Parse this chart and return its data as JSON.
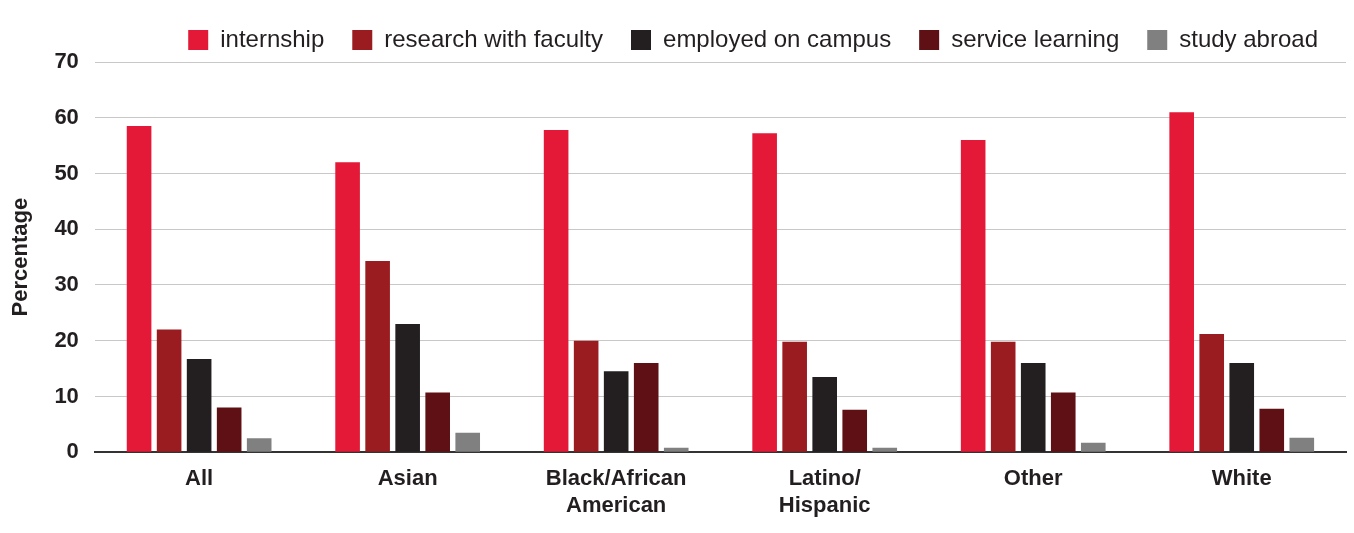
{
  "chart_data": {
    "type": "bar",
    "ylabel": "Percentage",
    "categories": [
      "All",
      "Asian",
      "Black/African\nAmerican",
      "Latino/\nHispanic",
      "Other",
      "White"
    ],
    "series": [
      {
        "name": "internship",
        "color": "#e31937",
        "values": [
          58.5,
          52,
          57.8,
          57.2,
          56,
          61
        ]
      },
      {
        "name": "research with faculty",
        "color": "#9b1c20",
        "values": [
          22,
          34.3,
          20,
          19.8,
          19.8,
          21.2
        ]
      },
      {
        "name": "employed on campus",
        "color": "#231f20",
        "values": [
          16.7,
          23,
          14.5,
          13.5,
          16,
          16
        ]
      },
      {
        "name": "service learning",
        "color": "#5e1014",
        "values": [
          8,
          10.7,
          16,
          7.6,
          10.7,
          7.8
        ]
      },
      {
        "name": "study abroad",
        "color": "#808080",
        "values": [
          2.5,
          3.5,
          0.8,
          0.8,
          1.7,
          2.6
        ]
      }
    ],
    "ylim": [
      0,
      70
    ],
    "yticks": [
      0,
      10,
      20,
      30,
      40,
      50,
      60,
      70
    ],
    "grid": "y",
    "legend": "top"
  }
}
